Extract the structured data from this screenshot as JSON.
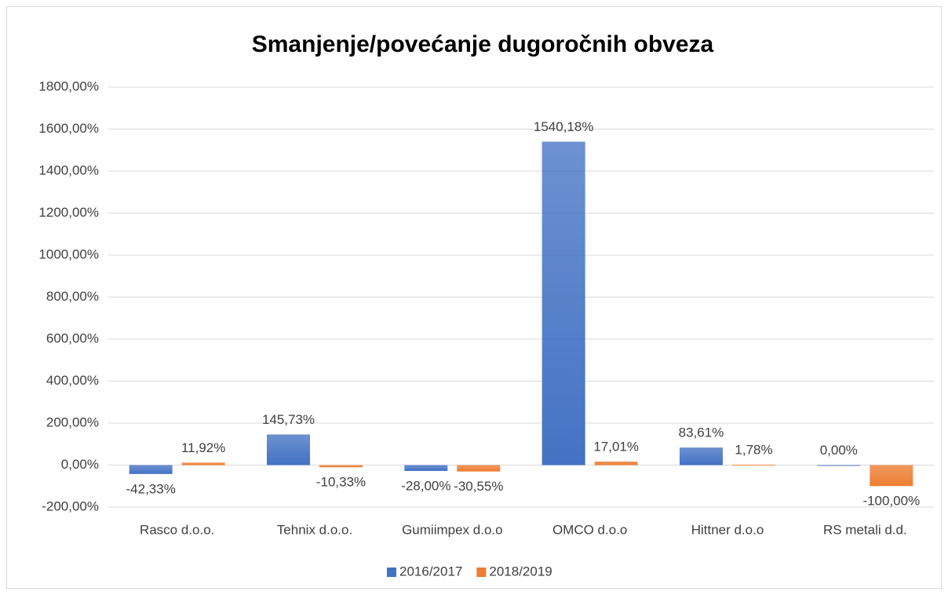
{
  "chart_data": {
    "type": "bar",
    "title": "Smanjenje/povećanje dugoročnih obveza",
    "categories": [
      "Rasco d.o.o.",
      "Tehnix d.o.o.",
      "Gumiimpex d.o.o",
      "OMCO d.o.o",
      "Hittner d.o.o",
      "RS metali d.d."
    ],
    "series": [
      {
        "name": "2016/2017",
        "color": "#4472c4",
        "values": [
          -42.33,
          145.73,
          -28.0,
          1540.18,
          83.61,
          0.0
        ],
        "value_labels": [
          "-42,33%",
          "145,73%",
          "-28,00%",
          "1540,18%",
          "83,61%",
          "0,00%"
        ]
      },
      {
        "name": "2018/2019",
        "color": "#ed7d31",
        "values": [
          11.92,
          -10.33,
          -30.55,
          17.01,
          1.78,
          -100.0
        ],
        "value_labels": [
          "11,92%",
          "-10,33%",
          "-30,55%",
          "17,01%",
          "1,78%",
          "-100,00%"
        ]
      }
    ],
    "ylim": [
      -200,
      1800
    ],
    "yticks": [
      {
        "value": -200,
        "label": "-200,00%"
      },
      {
        "value": 0,
        "label": "0,00%"
      },
      {
        "value": 200,
        "label": "200,00%"
      },
      {
        "value": 400,
        "label": "400,00%"
      },
      {
        "value": 600,
        "label": "600,00%"
      },
      {
        "value": 800,
        "label": "800,00%"
      },
      {
        "value": 1000,
        "label": "1000,00%"
      },
      {
        "value": 1200,
        "label": "1200,00%"
      },
      {
        "value": 1400,
        "label": "1400,00%"
      },
      {
        "value": 1600,
        "label": "1600,00%"
      },
      {
        "value": 1800,
        "label": "1800,00%"
      }
    ],
    "grid": true,
    "legend": "bottom"
  }
}
